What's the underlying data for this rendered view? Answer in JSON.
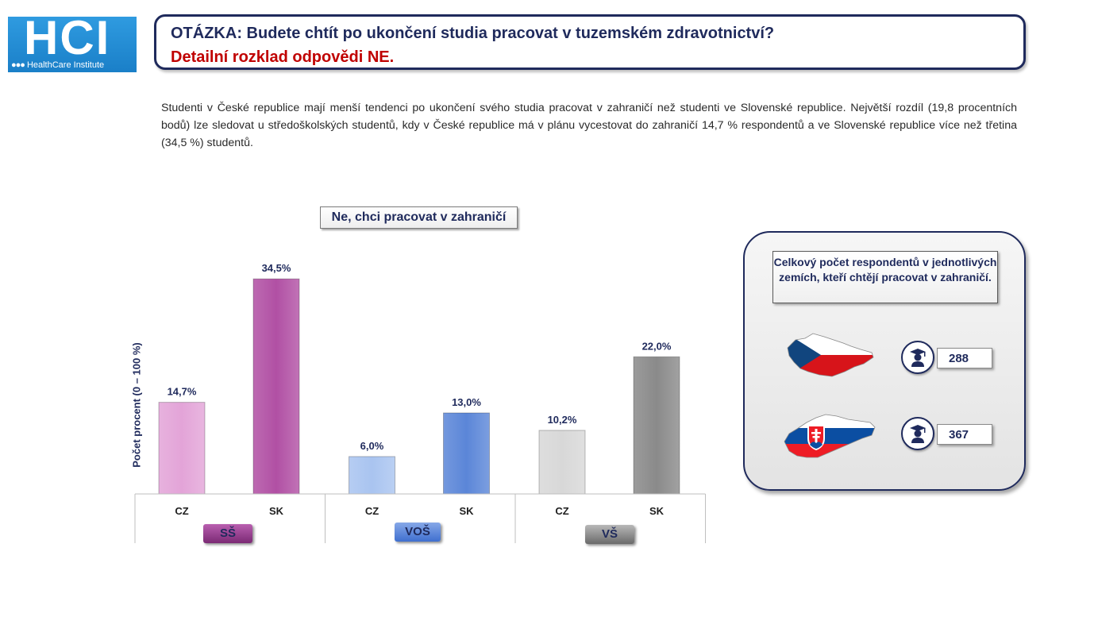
{
  "logo": {
    "main": "HCI",
    "dots": "●●●",
    "sub": "HealthCare Institute"
  },
  "header": {
    "question": "OTÁZKA: Budete chtít po ukončení studia pracovat v tuzemském zdravotnictví?",
    "subtitle": "Detailní rozklad odpovědi NE."
  },
  "description": "Studenti v České republice mají menší tendenci po ukončení svého studia pracovat v zahraničí než studenti ve Slovenské republice. Největší rozdíl (19,8 procentních bodů) lze sledovat u středoškolských studentů, kdy v České republice má v plánu vycestovat do zahraničí 14,7 % respondentů a ve Slovenské republice více než třetina (34,5 %) studentů.",
  "chart_data": {
    "type": "bar",
    "title": "Ne, chci pracovat v zahraničí",
    "ylabel": "Počet procent  (0 – 100 %)",
    "xlabel": "",
    "ylim": [
      0,
      40
    ],
    "grid": false,
    "groups": [
      {
        "name": "SŠ",
        "color_light": "#e3a4d8",
        "color_dark": "#b150a4",
        "bars": [
          {
            "category": "CZ",
            "value": 14.7,
            "label": "14,7%"
          },
          {
            "category": "SK",
            "value": 34.5,
            "label": "34,5%"
          }
        ]
      },
      {
        "name": "VOŠ",
        "color_light": "#a9c4f0",
        "color_dark": "#5b86d8",
        "bars": [
          {
            "category": "CZ",
            "value": 6.0,
            "label": "6,0%"
          },
          {
            "category": "SK",
            "value": 13.0,
            "label": "13,0%"
          }
        ]
      },
      {
        "name": "VŠ",
        "color_light": "#d8d8d8",
        "color_dark": "#8a8a8a",
        "bars": [
          {
            "category": "CZ",
            "value": 10.2,
            "label": "10,2%"
          },
          {
            "category": "SK",
            "value": 22.0,
            "label": "22,0%"
          }
        ]
      }
    ]
  },
  "panel": {
    "title": "Celkový počet respondentů v jednotlivých zemích, kteří chtějí pracovat v zahraničí.",
    "countries": [
      {
        "country": "CZ",
        "icon": "graduate-icon",
        "count": "288"
      },
      {
        "country": "SK",
        "icon": "graduate-icon",
        "count": "367"
      }
    ]
  },
  "colors": {
    "navy": "#1f2a5c",
    "red": "#c00000",
    "logo_blue": "#1a7fc8"
  }
}
